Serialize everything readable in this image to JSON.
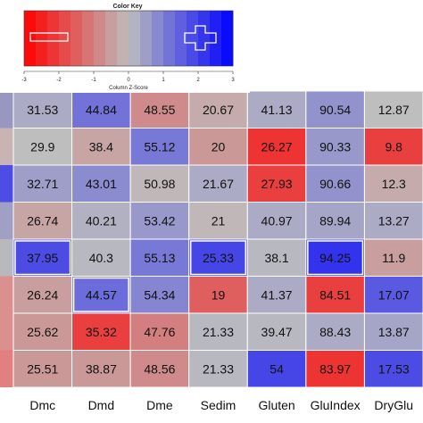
{
  "chart_data": {
    "type": "heatmap",
    "color_key": {
      "title": "Color Key",
      "ticks": [
        "-3",
        "-2",
        "-1",
        "0",
        "1",
        "2",
        "3"
      ],
      "xlabel": "Column Z-Score",
      "range": [
        -3,
        3
      ],
      "colors": {
        "low": "#ff0000",
        "mid": "#bebebe",
        "high": "#0000ff"
      }
    },
    "columns": [
      "Dmc",
      "Dmd",
      "Dme",
      "Sedim",
      "Gluten",
      "GluIndex",
      "DryGlu"
    ],
    "values": [
      [
        "31.53",
        "44.84",
        "48.55",
        "20.67",
        "41.13",
        "90.54",
        "12.87"
      ],
      [
        "29.9",
        "38.4",
        "55.12",
        "20",
        "26.27",
        "90.33",
        "9.8"
      ],
      [
        "32.71",
        "43.01",
        "50.98",
        "21.67",
        "27.93",
        "90.66",
        "12.3"
      ],
      [
        "26.74",
        "40.21",
        "53.42",
        "21",
        "40.97",
        "89.94",
        "13.27"
      ],
      [
        "37.95",
        "40.3",
        "55.13",
        "25.33",
        "38.1",
        "94.25",
        "11.9"
      ],
      [
        "26.24",
        "44.57",
        "54.34",
        "19",
        "41.37",
        "84.51",
        "17.07"
      ],
      [
        "25.62",
        "35.32",
        "47.76",
        "21.33",
        "39.47",
        "88.43",
        "13.87"
      ],
      [
        "25.51",
        "38.87",
        "48.56",
        "21.33",
        "54",
        "83.97",
        "17.53"
      ]
    ],
    "z_scores": [
      [
        0.3,
        1.2,
        -0.8,
        -0.3,
        0.3,
        0.7,
        0.0
      ],
      [
        0.0,
        -0.4,
        1.1,
        -0.6,
        -2.2,
        0.6,
        -2.0
      ],
      [
        0.5,
        0.8,
        -0.1,
        0.3,
        -2.0,
        0.7,
        -0.3
      ],
      [
        -0.4,
        0.2,
        0.6,
        -0.1,
        0.3,
        0.4,
        0.3
      ],
      [
        1.8,
        0.1,
        1.1,
        1.9,
        0.1,
        2.2,
        -0.5
      ],
      [
        -0.5,
        1.3,
        0.9,
        -1.5,
        0.3,
        -2.0,
        1.6
      ],
      [
        -0.6,
        -2.0,
        -1.0,
        0.1,
        0.1,
        0.3,
        0.4
      ],
      [
        -0.6,
        -0.6,
        -0.8,
        0.1,
        1.9,
        -2.2,
        1.8
      ]
    ],
    "outlined_cells": [
      [
        4,
        0
      ],
      [
        4,
        3
      ],
      [
        4,
        5
      ],
      [
        5,
        1
      ]
    ],
    "left_edge_colors": [
      "#9797c0",
      "#c9b3b3",
      "#4d4de6",
      "#a0a0c4",
      "#b8b8bd",
      "#d9908f",
      "#d9908f",
      "#e08080"
    ],
    "colors": {
      "grid_line": "#ffffff",
      "outline": "#ffffff"
    }
  }
}
